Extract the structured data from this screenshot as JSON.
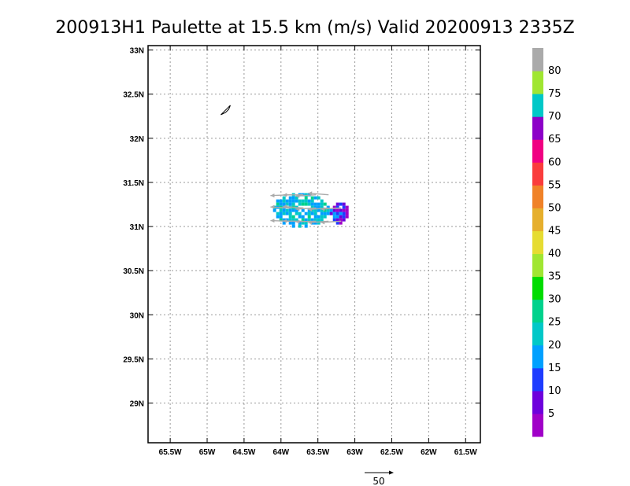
{
  "chart_data": {
    "type": "heatmap",
    "title": "200913H1 Paulette at 15.5 km (m/s) Valid 20200913 2335Z",
    "x_ticks": [
      "65.5W",
      "65W",
      "64.5W",
      "64W",
      "63.5W",
      "63W",
      "62.5W",
      "62W",
      "61.5W"
    ],
    "y_ticks": [
      "33N",
      "32.5N",
      "32N",
      "31.5N",
      "31N",
      "30.5N",
      "30N",
      "29.5N",
      "29N"
    ],
    "x_range": [
      -65.8,
      -61.3
    ],
    "y_range": [
      28.55,
      33.05
    ],
    "grid": true,
    "colorbar": {
      "labels": [
        "5",
        "10",
        "15",
        "20",
        "25",
        "30",
        "35",
        "40",
        "45",
        "50",
        "55",
        "60",
        "65",
        "70",
        "75",
        "80"
      ],
      "colors": [
        "#a000c8",
        "#6e00dc",
        "#1e3cff",
        "#00a0ff",
        "#00c8c8",
        "#00d28c",
        "#00dc00",
        "#a0e632",
        "#e6dc32",
        "#e6af2d",
        "#f08228",
        "#fa3c3c",
        "#f00082",
        "#8c00c8",
        "#00c8c8",
        "#a0e632",
        "#aaaaaa"
      ]
    },
    "reference_vector": {
      "label": "50",
      "value": 50
    },
    "wind_region": {
      "lat_range": [
        31.0,
        31.45
      ],
      "lon_range": [
        -64.15,
        -63.1
      ],
      "colors_present": [
        "#00c8c8",
        "#00a0ff",
        "#1e3cff",
        "#6e00dc",
        "#a000c8",
        "#00d28c"
      ]
    }
  }
}
